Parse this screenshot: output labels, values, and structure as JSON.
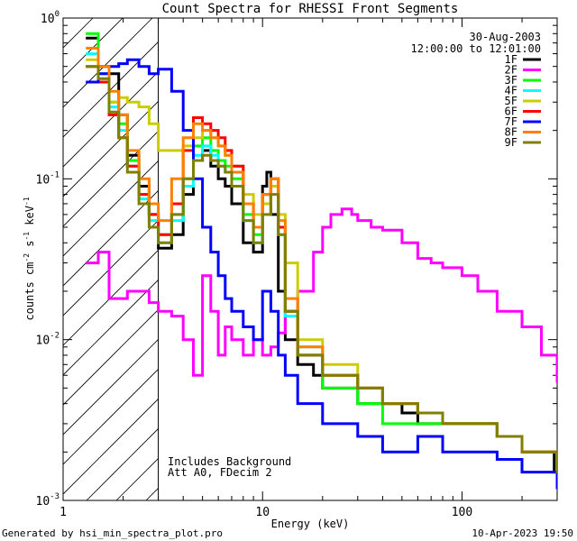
{
  "chart_data": {
    "type": "line",
    "title": "Count Spectra for RHESSI Front Segments",
    "xlabel": "Energy (keV)",
    "ylabel_parts": [
      "counts cm",
      "-2",
      " s",
      "-1",
      " keV",
      "-1"
    ],
    "xscale": "log",
    "yscale": "log",
    "xlim": [
      1,
      300
    ],
    "ylim": [
      0.001,
      1
    ],
    "x_ticks": [
      1,
      10,
      100
    ],
    "x_tick_labels": [
      "1",
      "10",
      "100"
    ],
    "y_ticks": [
      1,
      0.1,
      0.01,
      0.001
    ],
    "y_tick_labels": [
      {
        "base": "10",
        "exp": "0"
      },
      {
        "base": "10",
        "exp": "-1"
      },
      {
        "base": "10",
        "exp": "-2"
      },
      {
        "base": "10",
        "exp": "-3"
      }
    ],
    "date": "30-Aug-2003",
    "time_range": "12:00:00 to 12:01:00",
    "shaded_region_max_kev": 3,
    "annotations": [
      "Includes Background",
      "Att A0, FDecim 2"
    ],
    "series": [
      {
        "name": "1F",
        "color": "#000000",
        "x": [
          1.3,
          1.5,
          1.7,
          1.9,
          2.1,
          2.4,
          2.7,
          3.0,
          3.5,
          4.0,
          4.5,
          5.0,
          5.5,
          6.0,
          6.5,
          7.0,
          8.0,
          9.0,
          10.0,
          10.5,
          11.0,
          12.0,
          13.0,
          15.0,
          18.0,
          20.0,
          25.0,
          30.0,
          40.0,
          50.0,
          60.0,
          80.0,
          100.0,
          150.0,
          200.0,
          250.0,
          290.0
        ],
        "y": [
          0.75,
          0.5,
          0.45,
          0.25,
          0.14,
          0.09,
          0.06,
          0.037,
          0.045,
          0.08,
          0.13,
          0.15,
          0.12,
          0.1,
          0.09,
          0.07,
          0.04,
          0.035,
          0.09,
          0.11,
          0.06,
          0.02,
          0.01,
          0.007,
          0.006,
          0.005,
          0.005,
          0.004,
          0.004,
          0.0035,
          0.003,
          0.003,
          0.003,
          0.0025,
          0.002,
          0.002,
          0.0015
        ]
      },
      {
        "name": "2F",
        "color": "#ff00ff",
        "x": [
          1.3,
          1.5,
          1.7,
          1.9,
          2.1,
          2.4,
          2.7,
          3.0,
          3.5,
          4.0,
          4.5,
          5.0,
          5.5,
          6.0,
          6.5,
          7.0,
          8.0,
          9.0,
          10.0,
          11.0,
          12.0,
          13.0,
          15.0,
          18.0,
          20.0,
          22.0,
          25.0,
          28.0,
          30.0,
          35.0,
          40.0,
          50.0,
          60.0,
          70.0,
          80.0,
          100.0,
          120.0,
          150.0,
          200.0,
          250.0,
          300.0
        ],
        "y": [
          0.03,
          0.035,
          0.018,
          0.018,
          0.02,
          0.02,
          0.017,
          0.015,
          0.014,
          0.01,
          0.006,
          0.025,
          0.015,
          0.008,
          0.012,
          0.01,
          0.008,
          0.01,
          0.008,
          0.009,
          0.011,
          0.015,
          0.02,
          0.035,
          0.05,
          0.06,
          0.065,
          0.06,
          0.055,
          0.05,
          0.048,
          0.04,
          0.032,
          0.03,
          0.028,
          0.025,
          0.02,
          0.015,
          0.012,
          0.008,
          0.0055
        ]
      },
      {
        "name": "3F",
        "color": "#00ff00",
        "x": [
          1.3,
          1.5,
          1.7,
          1.9,
          2.1,
          2.4,
          2.7,
          3.0,
          3.5,
          4.0,
          4.5,
          5.0,
          5.5,
          6.0,
          6.5,
          7.0,
          8.0,
          9.0,
          10.0,
          11.0,
          12.0,
          13.0,
          15.0,
          20.0,
          30.0,
          40.0,
          60.0,
          80.0,
          100.0,
          150.0,
          200.0,
          250.0,
          300.0
        ],
        "y": [
          0.8,
          0.45,
          0.3,
          0.22,
          0.13,
          0.08,
          0.06,
          0.045,
          0.06,
          0.1,
          0.16,
          0.18,
          0.15,
          0.13,
          0.12,
          0.1,
          0.06,
          0.045,
          0.08,
          0.1,
          0.05,
          0.015,
          0.008,
          0.005,
          0.004,
          0.003,
          0.003,
          0.003,
          0.003,
          0.0025,
          0.002,
          0.002,
          0.0015
        ]
      },
      {
        "name": "4F",
        "color": "#00ffff",
        "x": [
          1.3,
          1.5,
          1.7,
          1.9,
          2.1,
          2.4,
          2.7,
          3.0,
          3.5,
          4.0,
          4.5,
          5.0,
          5.5,
          6.0,
          6.5,
          7.0,
          8.0,
          9.0,
          10.0,
          11.0,
          12.0,
          13.0,
          15.0,
          20.0,
          30.0,
          40.0,
          60.0,
          80.0,
          100.0,
          150.0,
          200.0,
          250.0,
          300.0
        ],
        "y": [
          0.6,
          0.42,
          0.28,
          0.2,
          0.12,
          0.075,
          0.055,
          0.04,
          0.055,
          0.09,
          0.14,
          0.16,
          0.14,
          0.12,
          0.11,
          0.09,
          0.055,
          0.04,
          0.07,
          0.09,
          0.045,
          0.014,
          0.009,
          0.006,
          0.005,
          0.004,
          0.0035,
          0.003,
          0.003,
          0.0025,
          0.002,
          0.002,
          0.0016
        ]
      },
      {
        "name": "5F",
        "color": "#cccc00",
        "x": [
          1.3,
          1.5,
          1.7,
          1.9,
          2.1,
          2.4,
          2.7,
          3.0,
          3.5,
          4.0,
          4.5,
          5.0,
          5.5,
          6.0,
          6.5,
          7.0,
          8.0,
          9.0,
          10.0,
          11.0,
          12.0,
          13.0,
          15.0,
          20.0,
          30.0,
          40.0,
          60.0,
          80.0,
          100.0,
          150.0,
          200.0,
          250.0,
          300.0
        ],
        "y": [
          0.55,
          0.4,
          0.3,
          0.32,
          0.3,
          0.28,
          0.22,
          0.15,
          0.15,
          0.16,
          0.18,
          0.2,
          0.18,
          0.16,
          0.14,
          0.12,
          0.08,
          0.06,
          0.07,
          0.09,
          0.06,
          0.03,
          0.01,
          0.007,
          0.005,
          0.004,
          0.0035,
          0.003,
          0.003,
          0.0025,
          0.002,
          0.002,
          0.0015
        ]
      },
      {
        "name": "6F",
        "color": "#ff0000",
        "x": [
          1.3,
          1.5,
          1.7,
          1.9,
          2.1,
          2.4,
          2.7,
          3.0,
          3.5,
          4.0,
          4.5,
          5.0,
          5.5,
          6.0,
          6.5,
          7.0,
          8.0,
          9.0,
          10.0,
          11.0,
          12.0,
          13.0,
          15.0,
          20.0,
          30.0,
          40.0,
          60.0,
          80.0,
          100.0,
          150.0,
          200.0,
          250.0,
          300.0
        ],
        "y": [
          0.5,
          0.4,
          0.25,
          0.18,
          0.12,
          0.08,
          0.06,
          0.045,
          0.07,
          0.15,
          0.24,
          0.22,
          0.2,
          0.18,
          0.15,
          0.12,
          0.07,
          0.05,
          0.08,
          0.1,
          0.05,
          0.015,
          0.008,
          0.006,
          0.005,
          0.004,
          0.0035,
          0.003,
          0.003,
          0.0025,
          0.002,
          0.002,
          0.0016
        ]
      },
      {
        "name": "7F",
        "color": "#0000ff",
        "x": [
          1.3,
          1.5,
          1.7,
          1.9,
          2.1,
          2.4,
          2.7,
          3.0,
          3.5,
          4.0,
          4.5,
          5.0,
          5.5,
          6.0,
          6.5,
          7.0,
          8.0,
          9.0,
          10.0,
          11.0,
          12.0,
          13.0,
          15.0,
          20.0,
          30.0,
          40.0,
          60.0,
          80.0,
          100.0,
          150.0,
          200.0,
          250.0,
          300.0
        ],
        "y": [
          0.4,
          0.45,
          0.5,
          0.52,
          0.55,
          0.5,
          0.45,
          0.48,
          0.35,
          0.2,
          0.1,
          0.05,
          0.035,
          0.025,
          0.018,
          0.015,
          0.012,
          0.01,
          0.02,
          0.015,
          0.008,
          0.006,
          0.004,
          0.003,
          0.0025,
          0.002,
          0.0025,
          0.002,
          0.002,
          0.0018,
          0.0015,
          0.0015,
          0.0012
        ]
      },
      {
        "name": "8F",
        "color": "#ff8000",
        "x": [
          1.3,
          1.5,
          1.7,
          1.9,
          2.1,
          2.4,
          2.7,
          3.0,
          3.5,
          4.0,
          4.5,
          5.0,
          5.5,
          6.0,
          6.5,
          7.0,
          8.0,
          9.0,
          10.0,
          11.0,
          12.0,
          13.0,
          15.0,
          20.0,
          30.0,
          40.0,
          60.0,
          80.0,
          100.0,
          150.0,
          200.0,
          250.0,
          300.0
        ],
        "y": [
          0.65,
          0.5,
          0.35,
          0.25,
          0.15,
          0.1,
          0.07,
          0.055,
          0.1,
          0.18,
          0.22,
          0.2,
          0.18,
          0.16,
          0.14,
          0.11,
          0.07,
          0.05,
          0.08,
          0.1,
          0.055,
          0.018,
          0.009,
          0.006,
          0.005,
          0.004,
          0.0035,
          0.003,
          0.003,
          0.0025,
          0.002,
          0.002,
          0.0017
        ]
      },
      {
        "name": "9F",
        "color": "#808000",
        "x": [
          1.3,
          1.5,
          1.7,
          1.9,
          2.1,
          2.4,
          2.7,
          3.0,
          3.5,
          4.0,
          4.5,
          5.0,
          5.5,
          6.0,
          6.5,
          7.0,
          8.0,
          9.0,
          10.0,
          11.0,
          12.0,
          13.0,
          15.0,
          20.0,
          30.0,
          40.0,
          60.0,
          80.0,
          100.0,
          150.0,
          200.0,
          250.0,
          300.0
        ],
        "y": [
          0.5,
          0.42,
          0.26,
          0.18,
          0.11,
          0.07,
          0.05,
          0.04,
          0.06,
          0.1,
          0.13,
          0.14,
          0.13,
          0.12,
          0.11,
          0.09,
          0.055,
          0.04,
          0.06,
          0.08,
          0.045,
          0.015,
          0.008,
          0.006,
          0.005,
          0.004,
          0.0035,
          0.003,
          0.003,
          0.0025,
          0.002,
          0.002,
          0.0015
        ]
      }
    ]
  },
  "footer": {
    "generated_by": "Generated by hsi_min_spectra_plot.pro",
    "timestamp": "10-Apr-2023 19:50"
  }
}
